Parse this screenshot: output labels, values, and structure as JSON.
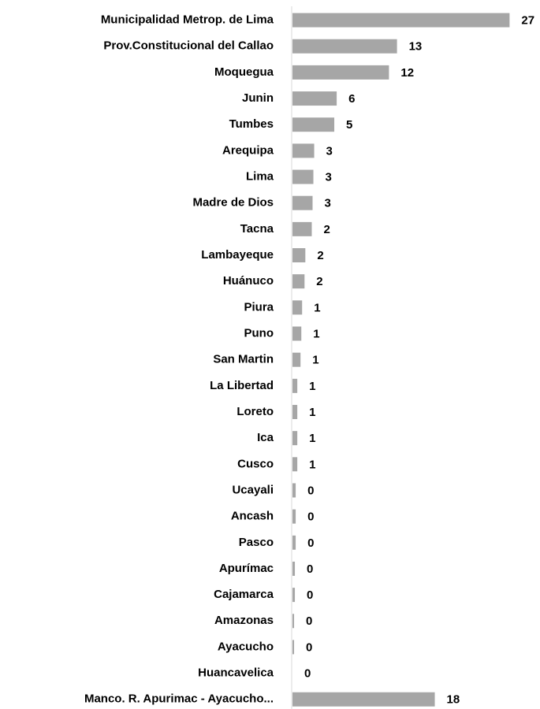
{
  "chart_data": {
    "type": "barh",
    "categories": [
      "Municipalidad Metrop. de Lima",
      "Prov.Constitucional del Callao",
      "Moquegua",
      "Junin",
      "Tumbes",
      "Arequipa",
      "Lima",
      "Madre de Dios",
      "Tacna",
      "Lambayeque",
      "Huánuco",
      "Piura",
      "Puno",
      "San Martin",
      "La Libertad",
      "Loreto",
      "Ica",
      "Cusco",
      "Ucayali",
      "Ancash",
      "Pasco",
      "Apurímac",
      "Cajamarca",
      "Amazonas",
      "Ayacucho",
      "Huancavelica",
      "Manco. R. Apurimac -  Ayacucho..."
    ],
    "values": [
      27,
      13,
      12,
      5.5,
      5.2,
      2.7,
      2.6,
      2.5,
      2.4,
      1.6,
      1.5,
      1.2,
      1.1,
      1.0,
      0.6,
      0.6,
      0.6,
      0.6,
      0.4,
      0.4,
      0.4,
      0.3,
      0.3,
      0.2,
      0.2,
      0,
      17.7
    ],
    "value_labels": [
      "27",
      "13",
      "12",
      "6",
      "5",
      "3",
      "3",
      "3",
      "2",
      "2",
      "2",
      "1",
      "1",
      "1",
      "1",
      "1",
      "1",
      "1",
      "0",
      "0",
      "0",
      "0",
      "0",
      "0",
      "0",
      "0",
      "18"
    ],
    "color": "#a6a6a6",
    "xlim": [
      0,
      30
    ]
  }
}
